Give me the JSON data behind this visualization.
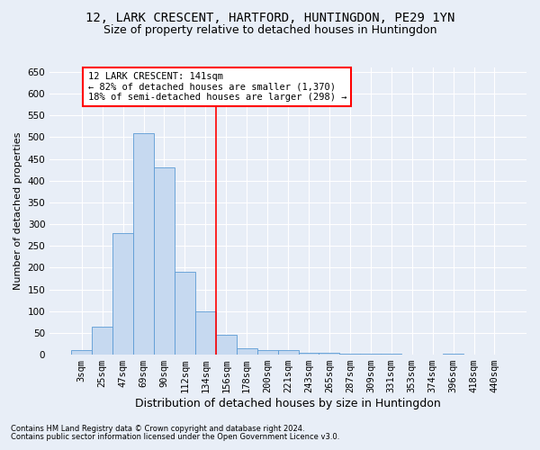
{
  "title": "12, LARK CRESCENT, HARTFORD, HUNTINGDON, PE29 1YN",
  "subtitle": "Size of property relative to detached houses in Huntingdon",
  "xlabel": "Distribution of detached houses by size in Huntingdon",
  "ylabel": "Number of detached properties",
  "footnote1": "Contains HM Land Registry data © Crown copyright and database right 2024.",
  "footnote2": "Contains public sector information licensed under the Open Government Licence v3.0.",
  "bin_labels": [
    "3sqm",
    "25sqm",
    "47sqm",
    "69sqm",
    "90sqm",
    "112sqm",
    "134sqm",
    "156sqm",
    "178sqm",
    "200sqm",
    "221sqm",
    "243sqm",
    "265sqm",
    "287sqm",
    "309sqm",
    "331sqm",
    "353sqm",
    "374sqm",
    "396sqm",
    "418sqm",
    "440sqm"
  ],
  "bar_values": [
    10,
    65,
    280,
    510,
    430,
    190,
    100,
    45,
    15,
    10,
    10,
    5,
    5,
    3,
    3,
    2,
    0,
    0,
    3,
    0,
    0
  ],
  "bar_color": "#c6d9f0",
  "bar_edge_color": "#5b9bd5",
  "highlight_line_color": "red",
  "annotation_text": "12 LARK CRESCENT: 141sqm\n← 82% of detached houses are smaller (1,370)\n18% of semi-detached houses are larger (298) →",
  "annotation_box_color": "white",
  "annotation_box_edge": "red",
  "ylim": [
    0,
    660
  ],
  "yticks": [
    0,
    50,
    100,
    150,
    200,
    250,
    300,
    350,
    400,
    450,
    500,
    550,
    600,
    650
  ],
  "background_color": "#e8eef7",
  "plot_bg_color": "#e8eef7",
  "grid_color": "white",
  "title_fontsize": 10,
  "subtitle_fontsize": 9,
  "xlabel_fontsize": 9,
  "ylabel_fontsize": 8,
  "tick_fontsize": 7.5,
  "footnote_fontsize": 6,
  "annot_fontsize": 7.5
}
